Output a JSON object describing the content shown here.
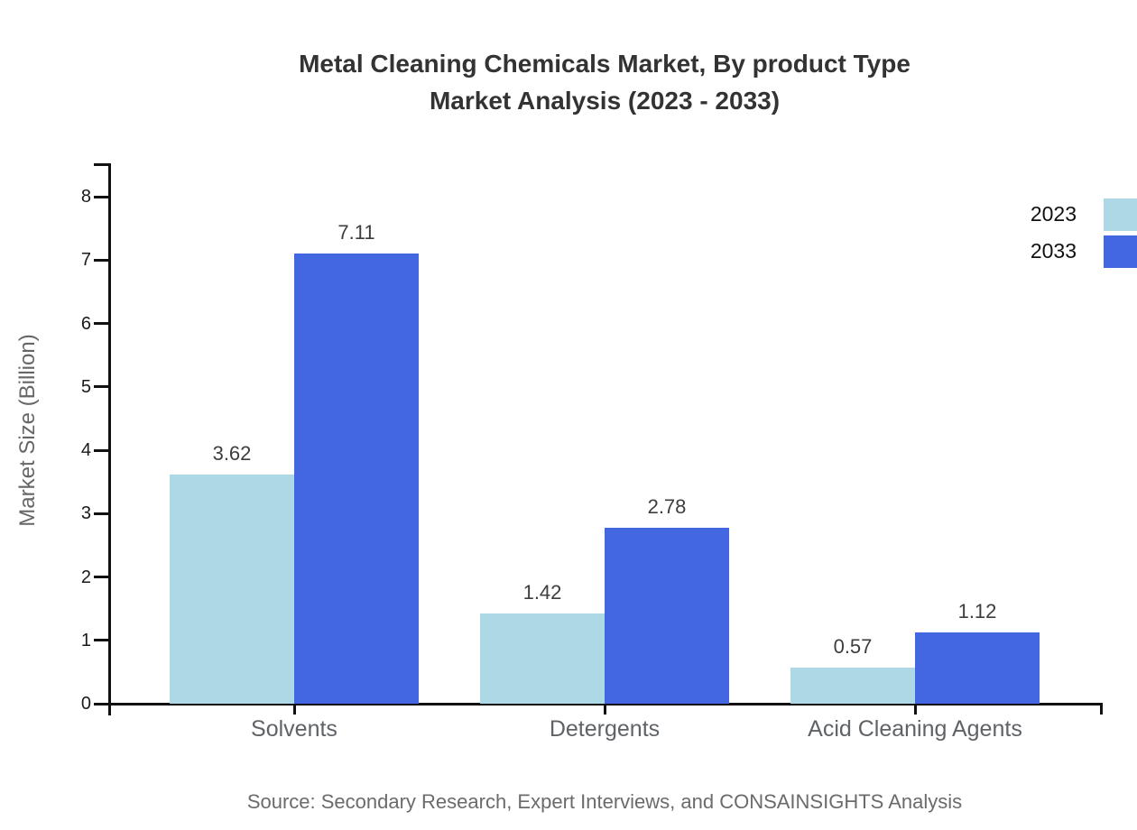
{
  "title": {
    "line1": "Metal Cleaning Chemicals Market, By product Type",
    "line2": "Market Analysis (2023 - 2033)"
  },
  "source": "Source: Secondary Research, Expert Interviews, and CONSAINSIGHTS Analysis",
  "chart_data": {
    "type": "bar",
    "title": "Metal Cleaning Chemicals Market, By product Type Market Analysis (2023 - 2033)",
    "categories": [
      "Solvents",
      "Detergents",
      "Acid Cleaning Agents"
    ],
    "series": [
      {
        "name": "2023",
        "color": "#ADD8E6",
        "values": [
          3.62,
          1.42,
          0.57
        ]
      },
      {
        "name": "2033",
        "color": "#4267E0",
        "values": [
          7.11,
          2.78,
          1.12
        ]
      }
    ],
    "xlabel": "",
    "ylabel": "Market Size (Billion)",
    "ylim": [
      0,
      8
    ],
    "yticks": [
      0,
      1,
      2,
      3,
      4,
      5,
      6,
      7,
      8
    ],
    "grid": false,
    "legend_position": "top-right",
    "value_labels": true
  },
  "colors": {
    "axis": "#111111",
    "title_text": "#333333",
    "tick_label": "#1a1a1a",
    "category_label": "#5f6368",
    "value_label": "#3d3d3d",
    "y_axis_title": "#666666",
    "source_text": "#6b6b6b",
    "series_2023": "#ADD8E6",
    "series_2033": "#4267E0",
    "background": "#ffffff"
  }
}
